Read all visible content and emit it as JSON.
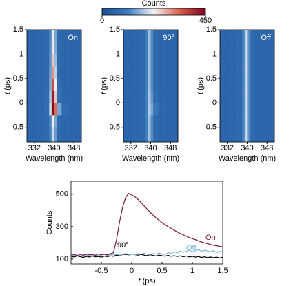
{
  "chart_data": [
    {
      "type": "colorbar",
      "label": "Counts",
      "lim": [
        0,
        450
      ],
      "ticks": [
        0,
        450
      ],
      "colors": [
        "#1b4f95",
        "#3d7dbf",
        "#f4f4f4",
        "#d6604d",
        "#7f0020"
      ]
    },
    {
      "type": "heatmap",
      "label": "On",
      "x_label": "Wavelength (nm)",
      "y_label": "t (ps)",
      "xlim": [
        329,
        351
      ],
      "xticks": [
        332,
        340,
        348
      ],
      "ylim": [
        -0.8,
        1.5
      ],
      "yticks": [
        -0.5,
        0,
        0.5,
        1,
        1.5
      ],
      "x_edges": [
        329,
        333,
        336,
        338,
        339,
        340,
        341,
        343,
        346,
        351
      ],
      "y_edges": [
        -0.8,
        -0.5,
        -0.25,
        0,
        0.25,
        0.5,
        0.75,
        1,
        1.25,
        1.5
      ],
      "z": [
        [
          55,
          58,
          65,
          120,
          200,
          140,
          65,
          58,
          55
        ],
        [
          55,
          58,
          65,
          125,
          230,
          150,
          70,
          58,
          55
        ],
        [
          55,
          58,
          70,
          200,
          440,
          330,
          150,
          70,
          55
        ],
        [
          55,
          58,
          68,
          180,
          420,
          260,
          80,
          58,
          55
        ],
        [
          55,
          58,
          65,
          160,
          360,
          220,
          70,
          58,
          55
        ],
        [
          55,
          58,
          65,
          145,
          300,
          190,
          65,
          58,
          55
        ],
        [
          55,
          58,
          65,
          135,
          260,
          170,
          65,
          58,
          55
        ],
        [
          55,
          58,
          65,
          130,
          235,
          155,
          65,
          58,
          55
        ],
        [
          55,
          58,
          65,
          125,
          220,
          150,
          65,
          58,
          55
        ]
      ]
    },
    {
      "type": "heatmap",
      "label": "90°",
      "x_label": "Wavelength (nm)",
      "y_label": "t (ps)",
      "xlim": [
        329,
        351
      ],
      "xticks": [
        332,
        340,
        348
      ],
      "ylim": [
        -0.8,
        1.5
      ],
      "yticks": [
        -0.5,
        0,
        0.5,
        1,
        1.5
      ],
      "x_edges": [
        329,
        333,
        336,
        338,
        339,
        340,
        341,
        343,
        346,
        351
      ],
      "y_edges": [
        -0.8,
        -0.5,
        -0.25,
        0,
        0.25,
        0.5,
        0.75,
        1,
        1.25,
        1.5
      ],
      "z": [
        [
          55,
          58,
          65,
          115,
          175,
          125,
          65,
          58,
          55
        ],
        [
          55,
          58,
          65,
          115,
          175,
          125,
          65,
          58,
          55
        ],
        [
          55,
          58,
          65,
          115,
          185,
          150,
          95,
          60,
          55
        ],
        [
          55,
          58,
          65,
          115,
          180,
          135,
          70,
          58,
          55
        ],
        [
          55,
          58,
          65,
          115,
          175,
          125,
          65,
          58,
          55
        ],
        [
          55,
          58,
          65,
          115,
          175,
          125,
          65,
          58,
          55
        ],
        [
          55,
          58,
          65,
          115,
          175,
          125,
          65,
          58,
          55
        ],
        [
          55,
          58,
          65,
          115,
          175,
          125,
          65,
          58,
          55
        ],
        [
          55,
          58,
          65,
          115,
          175,
          125,
          65,
          58,
          55
        ]
      ]
    },
    {
      "type": "heatmap",
      "label": "Off",
      "x_label": "Wavelength (nm)",
      "y_label": "t (ps)",
      "xlim": [
        329,
        351
      ],
      "xticks": [
        332,
        340,
        348
      ],
      "ylim": [
        -0.8,
        1.5
      ],
      "yticks": [
        -0.5,
        0,
        0.5,
        1,
        1.5
      ],
      "x_edges": [
        329,
        333,
        336,
        338,
        339,
        340,
        341,
        343,
        346,
        351
      ],
      "y_edges": [
        -0.8,
        -0.5,
        -0.25,
        0,
        0.25,
        0.5,
        0.75,
        1,
        1.25,
        1.5
      ],
      "z": [
        [
          55,
          58,
          65,
          120,
          195,
          130,
          65,
          58,
          55
        ],
        [
          55,
          58,
          65,
          120,
          195,
          130,
          65,
          58,
          55
        ],
        [
          55,
          58,
          65,
          120,
          195,
          130,
          65,
          58,
          55
        ],
        [
          55,
          58,
          65,
          120,
          195,
          130,
          65,
          58,
          55
        ],
        [
          55,
          58,
          65,
          120,
          195,
          130,
          65,
          58,
          55
        ],
        [
          55,
          58,
          65,
          120,
          195,
          130,
          65,
          58,
          55
        ],
        [
          55,
          58,
          65,
          120,
          195,
          130,
          65,
          58,
          55
        ],
        [
          55,
          58,
          65,
          120,
          195,
          130,
          65,
          58,
          55
        ],
        [
          55,
          58,
          65,
          120,
          195,
          130,
          65,
          58,
          55
        ]
      ]
    },
    {
      "type": "line",
      "x_label": "t (ps)",
      "y_label": "Counts",
      "xlim": [
        -1.0,
        1.5
      ],
      "xticks": [
        -0.5,
        0,
        0.5,
        1,
        1.5
      ],
      "ylim": [
        70,
        580
      ],
      "yticks": [
        100,
        300,
        500
      ],
      "x": [
        -1.0,
        -0.95,
        -0.9,
        -0.85,
        -0.8,
        -0.75,
        -0.7,
        -0.65,
        -0.6,
        -0.55,
        -0.5,
        -0.45,
        -0.4,
        -0.35,
        -0.3,
        -0.25,
        -0.2,
        -0.15,
        -0.1,
        -0.05,
        0,
        0.05,
        0.1,
        0.15,
        0.2,
        0.25,
        0.3,
        0.35,
        0.4,
        0.45,
        0.5,
        0.55,
        0.6,
        0.65,
        0.7,
        0.75,
        0.8,
        0.85,
        0.9,
        0.95,
        1.0,
        1.05,
        1.1,
        1.15,
        1.2,
        1.25,
        1.3,
        1.35,
        1.4,
        1.45,
        1.5
      ],
      "series": [
        {
          "name": "On",
          "color": "#7b1535",
          "values": [
            125,
            130,
            122,
            128,
            124,
            131,
            126,
            129,
            123,
            132,
            127,
            130,
            125,
            133,
            140,
            220,
            330,
            420,
            480,
            505,
            495,
            485,
            470,
            450,
            430,
            410,
            390,
            372,
            355,
            340,
            325,
            312,
            300,
            290,
            278,
            268,
            258,
            250,
            241,
            233,
            226,
            220,
            212,
            206,
            200,
            195,
            190,
            185,
            182,
            178,
            175
          ]
        },
        {
          "name": "Off",
          "color": "#7ab8d9",
          "values": [
            120,
            125,
            118,
            128,
            122,
            126,
            119,
            124,
            127,
            121,
            125,
            130,
            123,
            128,
            126,
            131,
            124,
            129,
            135,
            128,
            132,
            126,
            134,
            129,
            137,
            131,
            127,
            135,
            130,
            138,
            132,
            128,
            140,
            135,
            145,
            138,
            150,
            142,
            148,
            155,
            145,
            152,
            160,
            148,
            155,
            150,
            145,
            152,
            140,
            148,
            142
          ]
        },
        {
          "name": "90°",
          "color": "#000000",
          "values": [
            118,
            112,
            120,
            115,
            110,
            117,
            113,
            119,
            114,
            116,
            112,
            118,
            115,
            120,
            117,
            125,
            122,
            128,
            130,
            126,
            132,
            128,
            124,
            129,
            125,
            121,
            127,
            123,
            119,
            125,
            121,
            118,
            123,
            117,
            121,
            116,
            120,
            114,
            119,
            113,
            117,
            112,
            116,
            110,
            114,
            109,
            113,
            108,
            112,
            107,
            111
          ]
        }
      ]
    }
  ]
}
